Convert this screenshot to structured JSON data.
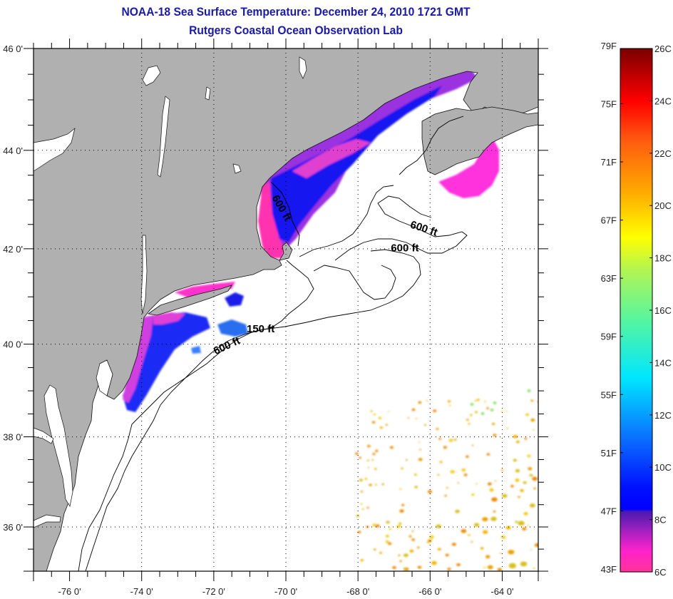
{
  "header": {
    "title": "NOAA-18 Sea Surface Temperature:  December 24, 2010 1721 GMT",
    "subtitle": "Rutgers Coastal Ocean Observation Lab"
  },
  "map": {
    "lon_range": [
      -77,
      -63
    ],
    "lat_range": [
      35,
      46
    ],
    "lon_ticks": [
      {
        "value": -76,
        "label": "-76 0'"
      },
      {
        "value": -74,
        "label": "-74 0'"
      },
      {
        "value": -72,
        "label": "-72 0'"
      },
      {
        "value": -70,
        "label": "-70 0'"
      },
      {
        "value": -68,
        "label": "-68 0'"
      },
      {
        "value": -66,
        "label": "-66 0'"
      },
      {
        "value": -64,
        "label": "-64 0'"
      }
    ],
    "lat_ticks": [
      {
        "value": 46,
        "label": "46 0'"
      },
      {
        "value": 44,
        "label": "44 0'"
      },
      {
        "value": 42,
        "label": "42 0'"
      },
      {
        "value": 40,
        "label": "40 0'"
      },
      {
        "value": 38,
        "label": "38 0'"
      },
      {
        "value": 36,
        "label": "36 0'"
      }
    ],
    "contour_labels": [
      {
        "text": "600 ft",
        "lon": -70.2,
        "lat": 42.8,
        "rotate": 60
      },
      {
        "text": "600 ft",
        "lon": -66.2,
        "lat": 42.35,
        "rotate": 18
      },
      {
        "text": "600 ft",
        "lon": -66.7,
        "lat": 41.95,
        "rotate": 0
      },
      {
        "text": "150 ft",
        "lon": -70.7,
        "lat": 40.25,
        "rotate": 0
      },
      {
        "text": "600 ft",
        "lon": -71.6,
        "lat": 39.9,
        "rotate": -25
      }
    ],
    "colors": {
      "land": "#b0b0b0",
      "water": "#ffffff",
      "title": "#1a1aa6"
    }
  },
  "colorbar": {
    "fahrenheit_range": [
      43,
      79
    ],
    "celsius_range": [
      6,
      26
    ],
    "fahrenheit_ticks": [
      "79F",
      "75F",
      "71F",
      "67F",
      "63F",
      "59F",
      "55F",
      "51F",
      "47F",
      "43F"
    ],
    "celsius_ticks": [
      "26C",
      "24C",
      "22C",
      "20C",
      "18C",
      "16C",
      "14C",
      "12C",
      "10C",
      "8C",
      "6C"
    ],
    "gradient_stops": [
      {
        "celsius": 6,
        "color": "#ff3399"
      },
      {
        "celsius": 6.8,
        "color": "#ff22cc"
      },
      {
        "celsius": 7.6,
        "color": "#a020c0"
      },
      {
        "celsius": 8.3,
        "color": "#4a1ab0"
      },
      {
        "celsius": 8.4,
        "color": "#0000ff"
      },
      {
        "celsius": 9.2,
        "color": "#0010ff"
      },
      {
        "celsius": 11,
        "color": "#0a6aff"
      },
      {
        "celsius": 13.4,
        "color": "#00e6ff"
      },
      {
        "celsius": 15.6,
        "color": "#55f5a0"
      },
      {
        "celsius": 17.5,
        "color": "#b0f555"
      },
      {
        "celsius": 18.8,
        "color": "#ffff00"
      },
      {
        "celsius": 20.5,
        "color": "#ffaa00"
      },
      {
        "celsius": 22.5,
        "color": "#ff5a10"
      },
      {
        "celsius": 24,
        "color": "#ff0000"
      },
      {
        "celsius": 26,
        "color": "#7a0000"
      }
    ]
  }
}
